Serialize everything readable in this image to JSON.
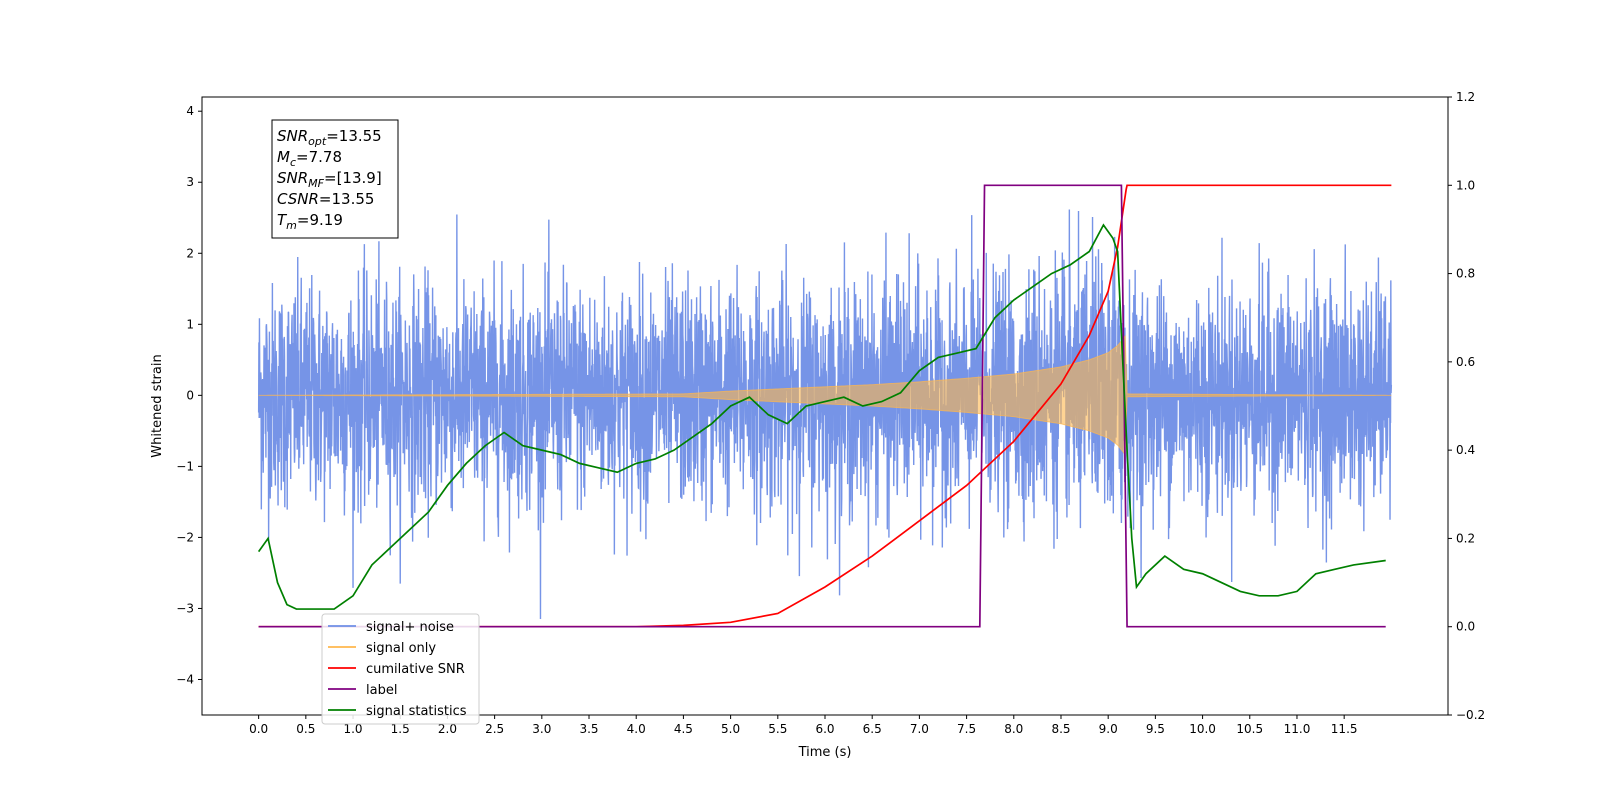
{
  "chart_data": {
    "type": "line",
    "title": "",
    "xlabel": "Time (s)",
    "ylabel": "Whitened strain",
    "xlim": [
      -0.6,
      12.6
    ],
    "ylim": [
      -4.5,
      4.2
    ],
    "y2lim": [
      -0.2,
      1.2
    ],
    "x_ticks": [
      "0.0",
      "0.5",
      "1.0",
      "1.5",
      "2.0",
      "2.5",
      "3.0",
      "3.5",
      "4.0",
      "4.5",
      "5.0",
      "5.5",
      "6.0",
      "6.5",
      "7.0",
      "7.5",
      "8.0",
      "8.5",
      "9.0",
      "9.5",
      "10.0",
      "10.5",
      "11.0",
      "11.5"
    ],
    "y_ticks": [
      "4",
      "3",
      "2",
      "1",
      "0",
      "−1",
      "−2",
      "−3",
      "−4"
    ],
    "y2_ticks": [
      "1.2",
      "1.0",
      "0.8",
      "0.6",
      "0.4",
      "0.2",
      "0.0",
      "−0.2"
    ],
    "grid": false,
    "legend_position": "lower-left",
    "info_box": [
      {
        "name": "SNR",
        "sub": "opt",
        "value": "=13.55"
      },
      {
        "name": "M",
        "sub": "c",
        "value": "=7.78"
      },
      {
        "name": "SNR",
        "sub": "MF",
        "value": "=[13.9]"
      },
      {
        "name": "CSNR",
        "sub": "",
        "value": "=13.55"
      },
      {
        "name": "T",
        "sub": "m",
        "value": "=9.19"
      }
    ],
    "series": [
      {
        "name": "signal+ noise",
        "color": "#6f8ee6",
        "axis": "left",
        "noise_sigma": 0.78,
        "x_range": [
          0.0,
          12.0
        ]
      },
      {
        "name": "signal only",
        "color": "#ffb74d",
        "axis": "left",
        "x_range": [
          0.0,
          12.0
        ],
        "merger_time": 9.19,
        "envelope": {
          "x": [
            0.0,
            4.5,
            5.0,
            5.5,
            6.0,
            6.5,
            7.0,
            7.5,
            8.0,
            8.5,
            8.8,
            9.0,
            9.1,
            9.19,
            9.2,
            12.0
          ],
          "y": [
            0.0,
            0.02,
            0.06,
            0.09,
            0.12,
            0.15,
            0.19,
            0.24,
            0.3,
            0.4,
            0.5,
            0.6,
            0.7,
            0.85,
            0.02,
            0.0
          ]
        }
      },
      {
        "name": "cumilative SNR",
        "color": "#ff0000",
        "axis": "right",
        "x": [
          0.0,
          4.0,
          4.5,
          5.0,
          5.5,
          6.0,
          6.5,
          7.0,
          7.5,
          8.0,
          8.5,
          8.8,
          9.0,
          9.1,
          9.19,
          9.2,
          12.0
        ],
        "y": [
          0.0,
          0.0,
          0.003,
          0.01,
          0.03,
          0.09,
          0.16,
          0.24,
          0.32,
          0.42,
          0.55,
          0.66,
          0.76,
          0.86,
          0.99,
          1.0,
          1.0
        ]
      },
      {
        "name": "label",
        "color": "#800080",
        "axis": "right",
        "x": [
          0.0,
          7.64,
          7.69,
          9.14,
          9.2,
          11.94
        ],
        "y": [
          0.0,
          0.0,
          1.0,
          1.0,
          0.0,
          0.0
        ]
      },
      {
        "name": "signal statistics",
        "color": "#008000",
        "axis": "right",
        "x": [
          0.0,
          0.1,
          0.2,
          0.3,
          0.4,
          0.6,
          0.8,
          1.0,
          1.2,
          1.4,
          1.6,
          1.8,
          2.0,
          2.2,
          2.4,
          2.6,
          2.8,
          3.0,
          3.2,
          3.4,
          3.6,
          3.8,
          4.0,
          4.2,
          4.4,
          4.6,
          4.8,
          5.0,
          5.2,
          5.4,
          5.6,
          5.8,
          6.0,
          6.2,
          6.4,
          6.6,
          6.8,
          7.0,
          7.2,
          7.4,
          7.6,
          7.8,
          8.0,
          8.2,
          8.4,
          8.6,
          8.8,
          8.95,
          9.05,
          9.1,
          9.15,
          9.2,
          9.25,
          9.3,
          9.4,
          9.6,
          9.8,
          10.0,
          10.2,
          10.4,
          10.6,
          10.8,
          11.0,
          11.2,
          11.4,
          11.6,
          11.94
        ],
        "y": [
          0.17,
          0.2,
          0.1,
          0.05,
          0.04,
          0.04,
          0.04,
          0.07,
          0.14,
          0.18,
          0.22,
          0.26,
          0.32,
          0.37,
          0.41,
          0.44,
          0.41,
          0.4,
          0.39,
          0.37,
          0.36,
          0.35,
          0.37,
          0.38,
          0.4,
          0.43,
          0.46,
          0.5,
          0.52,
          0.48,
          0.46,
          0.5,
          0.51,
          0.52,
          0.5,
          0.51,
          0.53,
          0.58,
          0.61,
          0.62,
          0.63,
          0.7,
          0.74,
          0.77,
          0.8,
          0.82,
          0.85,
          0.91,
          0.88,
          0.85,
          0.62,
          0.4,
          0.2,
          0.09,
          0.12,
          0.16,
          0.13,
          0.12,
          0.1,
          0.08,
          0.07,
          0.07,
          0.08,
          0.12,
          0.13,
          0.14,
          0.15
        ]
      }
    ]
  }
}
